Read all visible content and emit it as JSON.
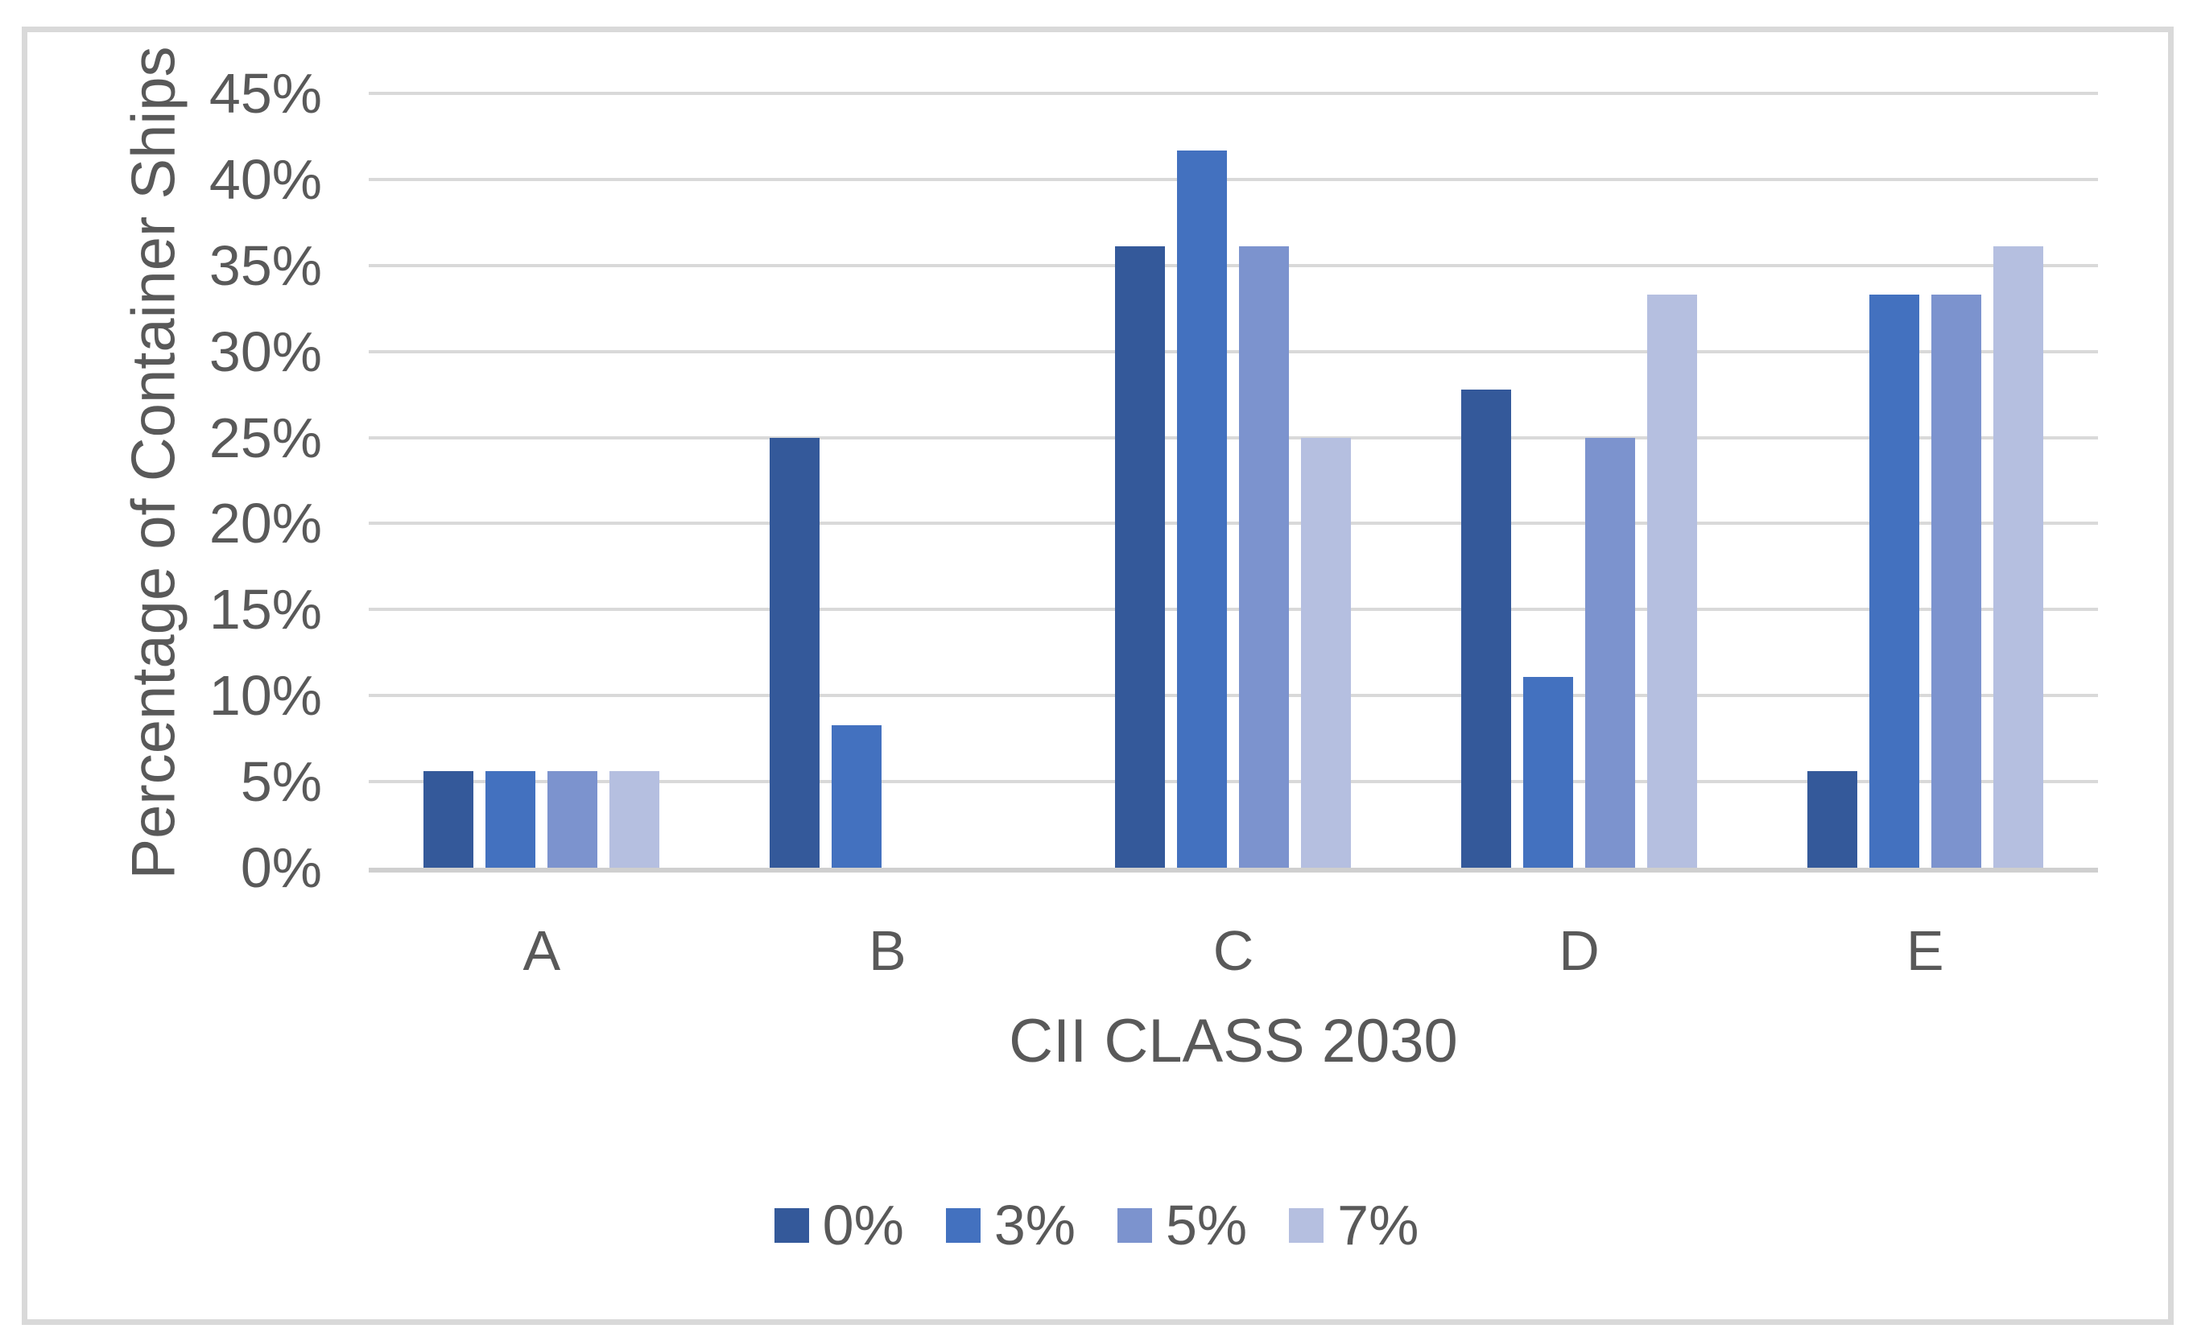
{
  "chart_data": {
    "type": "bar",
    "title": "",
    "xlabel": "CII CLASS 2030",
    "ylabel": "Percentage of Container Ships",
    "categories": [
      "A",
      "B",
      "C",
      "D",
      "E"
    ],
    "series": [
      {
        "name": "0%",
        "color": "#34599A",
        "values": [
          5.6,
          25.0,
          36.1,
          27.8,
          5.6
        ]
      },
      {
        "name": "3%",
        "color": "#4371BF",
        "values": [
          5.6,
          8.3,
          41.7,
          11.1,
          33.3
        ]
      },
      {
        "name": "5%",
        "color": "#7C93CE",
        "values": [
          5.6,
          0.0,
          36.1,
          25.0,
          33.3
        ]
      },
      {
        "name": "7%",
        "color": "#B5BFE0",
        "values": [
          5.6,
          0.0,
          25.0,
          33.3,
          36.1
        ]
      }
    ],
    "ylim": [
      0,
      45
    ],
    "y_tick_step": 5,
    "y_tick_labels": [
      "0%",
      "5%",
      "10%",
      "15%",
      "20%",
      "25%",
      "30%",
      "35%",
      "40%",
      "45%"
    ],
    "grid": true,
    "legend_position": "bottom",
    "colors": {
      "gridline": "#D9D9D9",
      "axis_line": "#CFCFCF",
      "text": "#595959",
      "frame_border": "#D9D9D9"
    }
  }
}
